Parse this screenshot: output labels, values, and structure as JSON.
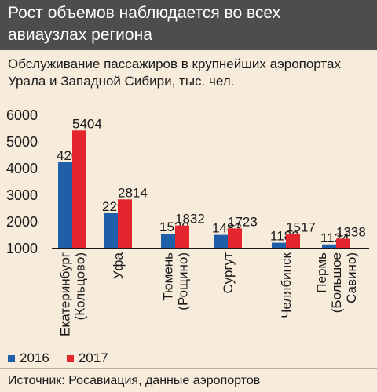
{
  "header": {
    "title_line1": "Рост объемов наблюдается во всех",
    "title_line2": "авиаузлах региона"
  },
  "subtitle": {
    "line1": "Обслуживание пассажиров в крупнейших аэропортах",
    "line2": "Урала и Западной Сибири, тыс. чел."
  },
  "legend": {
    "s2016": "2016",
    "s2017": "2017"
  },
  "source": "Источник: Росавиация, данные аэропортов",
  "colors": {
    "s2016": "#1f5ea8",
    "s2017": "#e3262d",
    "background": "#f7ecdc",
    "header": "#4d4d4f"
  },
  "chart_data": {
    "type": "bar",
    "title": "Рост объемов наблюдается во всех авиаузлах региона",
    "subtitle": "Обслуживание пассажиров в крупнейших аэропортах Урала и Западной Сибири, тыс. чел.",
    "categories": [
      [
        "Екатеринбург",
        "(Кольцово)"
      ],
      [
        "Уфа"
      ],
      [
        "Тюмень",
        "(Рощино)"
      ],
      [
        "Сургут"
      ],
      [
        "Челябинск"
      ],
      [
        "Пермь",
        "(Большое",
        "Савино)"
      ]
    ],
    "series": [
      {
        "name": "2016",
        "values": [
          4207,
          2295,
          1530,
          1483,
          1189,
          1124
        ]
      },
      {
        "name": "2017",
        "values": [
          5404,
          2814,
          1832,
          1723,
          1517,
          1338
        ]
      }
    ],
    "ylim": [
      1000,
      6000
    ],
    "yticks": [
      1000,
      2000,
      3000,
      4000,
      5000,
      6000
    ],
    "grid": false,
    "legend_position": "bottom-left"
  }
}
